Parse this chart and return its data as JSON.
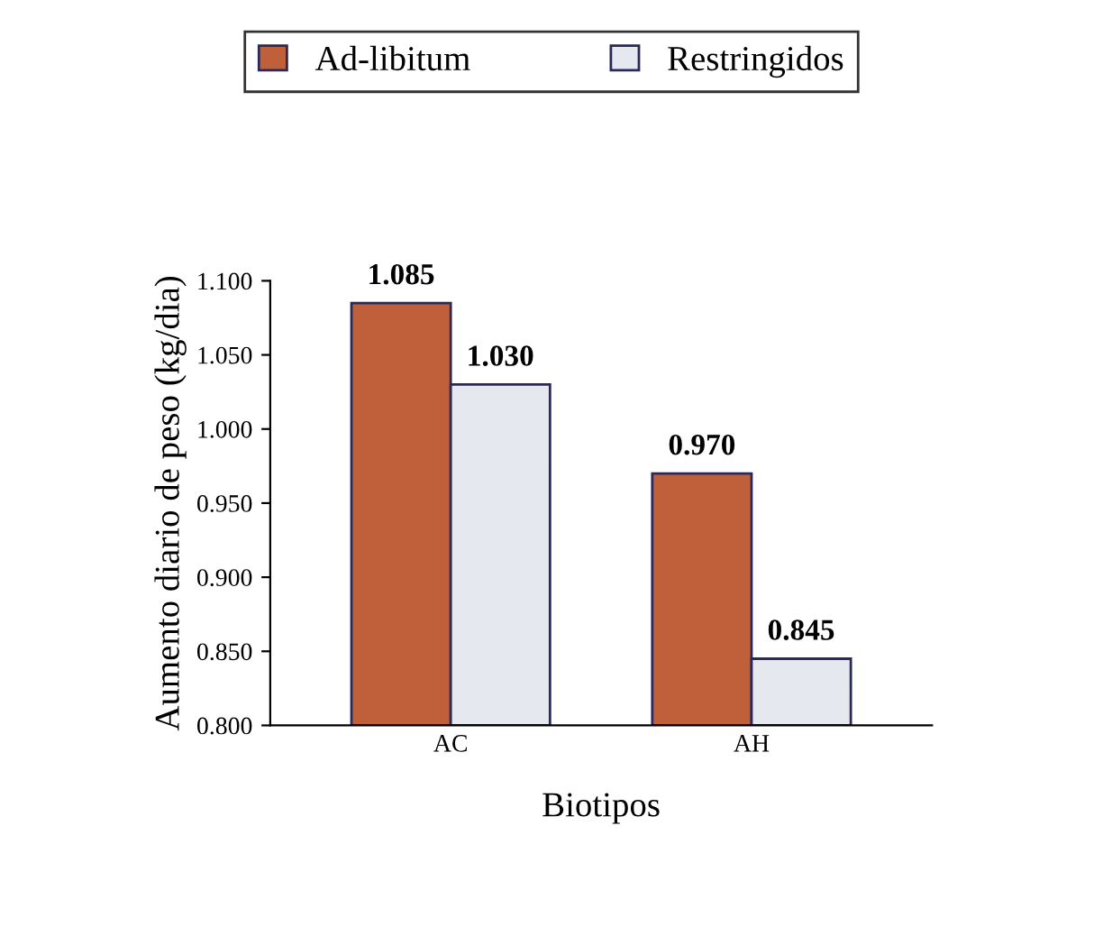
{
  "chart_data": {
    "type": "bar",
    "xlabel": "Biotipos",
    "ylabel": "Aumento diario de peso (kg/dia)",
    "categories": [
      "AC",
      "AH"
    ],
    "series": [
      {
        "name": "Ad-libitum",
        "color": "#c0603a",
        "values": [
          1.085,
          0.97
        ],
        "value_labels": [
          "1.085",
          "0.970"
        ]
      },
      {
        "name": "Restringidos",
        "color": "#e6e8f0",
        "values": [
          1.03,
          0.845
        ],
        "value_labels": [
          "1.030",
          "0.845"
        ]
      }
    ],
    "ylim": [
      0.8,
      1.1
    ],
    "yticks": [
      {
        "value": 0.8,
        "label": "0.800"
      },
      {
        "value": 0.85,
        "label": "0.850"
      },
      {
        "value": 0.9,
        "label": "0.900"
      },
      {
        "value": 0.95,
        "label": "0.950"
      },
      {
        "value": 1.0,
        "label": "1.000"
      },
      {
        "value": 1.05,
        "label": "1.050"
      },
      {
        "value": 1.1,
        "label": "1.100"
      }
    ],
    "legend": "top",
    "grid": false
  }
}
